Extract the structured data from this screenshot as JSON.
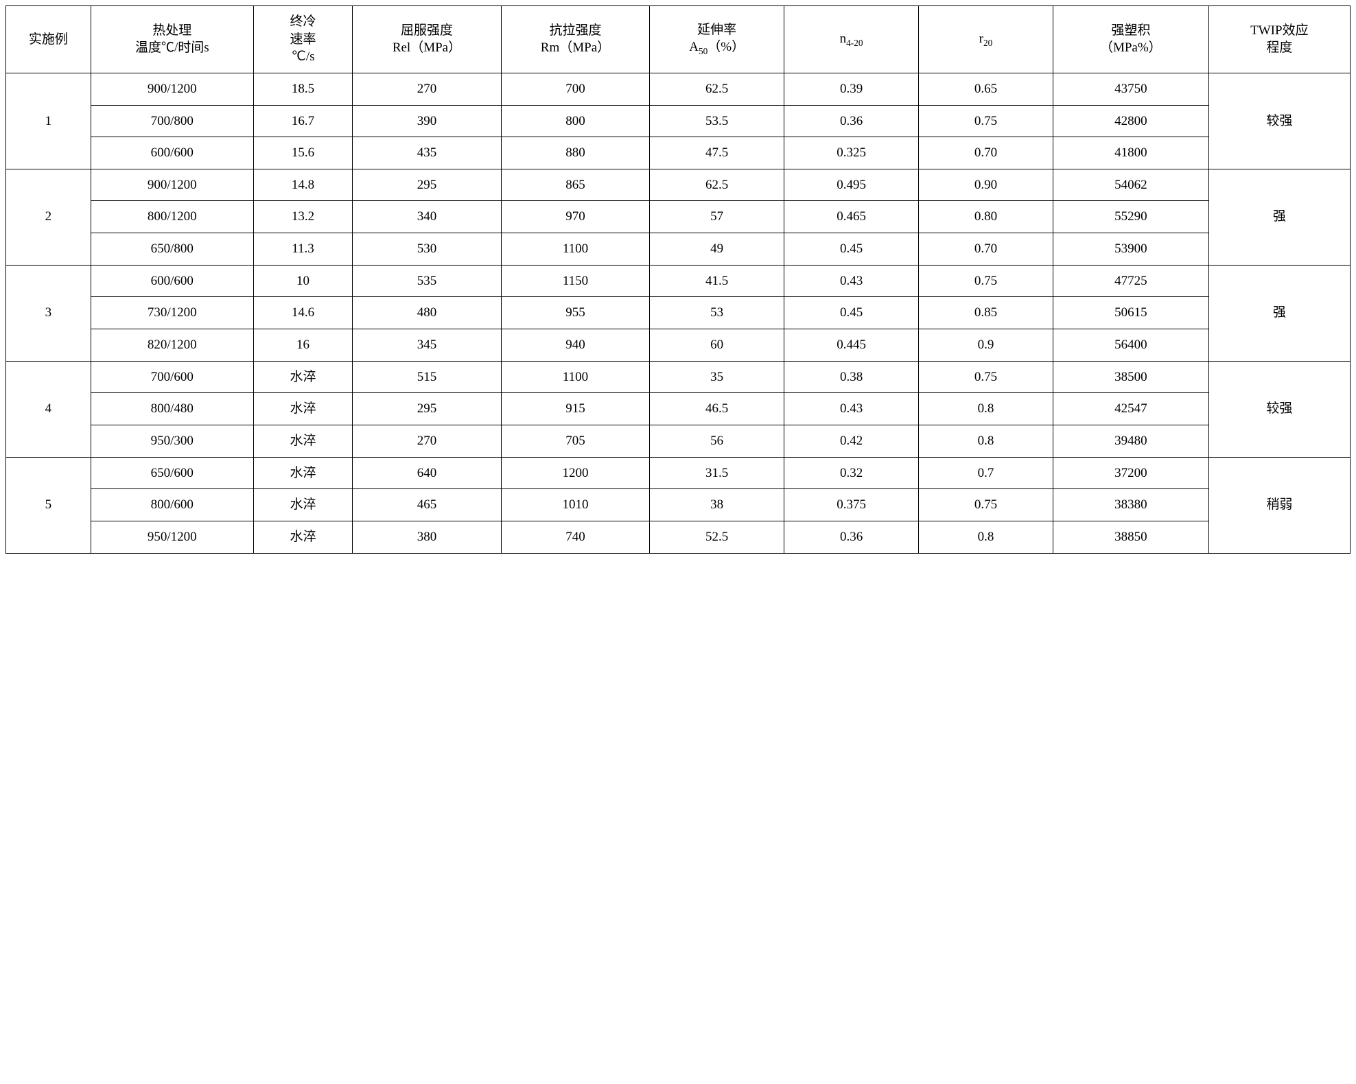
{
  "table": {
    "columns": [
      {
        "key": "example",
        "label_lines": [
          "实施例"
        ],
        "width_pct": 6.0
      },
      {
        "key": "heat",
        "label_lines": [
          "热处理",
          "温度℃/时间s"
        ],
        "width_pct": 11.5
      },
      {
        "key": "cool",
        "label_lines": [
          "终冷",
          "速率",
          "℃/s"
        ],
        "width_pct": 7.0
      },
      {
        "key": "rel",
        "label_lines": [
          "屈服强度",
          "Rel（MPa）"
        ],
        "width_pct": 10.5
      },
      {
        "key": "rm",
        "label_lines": [
          "抗拉强度",
          "Rm（MPa）"
        ],
        "width_pct": 10.5
      },
      {
        "key": "a50",
        "label_html": "延伸率<br>A<span class=\"sub\">50</span>（%）",
        "width_pct": 9.5
      },
      {
        "key": "n420",
        "label_html": "n<span class=\"sub\">4-20</span>",
        "width_pct": 9.5
      },
      {
        "key": "r20",
        "label_html": "r<span class=\"sub\">20</span>",
        "width_pct": 9.5
      },
      {
        "key": "qsj",
        "label_lines": [
          "强塑积",
          "（MPa%）"
        ],
        "width_pct": 11.0
      },
      {
        "key": "twip",
        "label_lines": [
          "TWIP效应",
          "程度"
        ],
        "width_pct": 10.0
      }
    ],
    "groups": [
      {
        "example": "1",
        "twip": "较强",
        "rows": [
          {
            "heat": "900/1200",
            "cool": "18.5",
            "rel": "270",
            "rm": "700",
            "a50": "62.5",
            "n420": "0.39",
            "r20": "0.65",
            "qsj": "43750"
          },
          {
            "heat": "700/800",
            "cool": "16.7",
            "rel": "390",
            "rm": "800",
            "a50": "53.5",
            "n420": "0.36",
            "r20": "0.75",
            "qsj": "42800"
          },
          {
            "heat": "600/600",
            "cool": "15.6",
            "rel": "435",
            "rm": "880",
            "a50": "47.5",
            "n420": "0.325",
            "r20": "0.70",
            "qsj": "41800"
          }
        ]
      },
      {
        "example": "2",
        "twip": "强",
        "rows": [
          {
            "heat": "900/1200",
            "cool": "14.8",
            "rel": "295",
            "rm": "865",
            "a50": "62.5",
            "n420": "0.495",
            "r20": "0.90",
            "qsj": "54062"
          },
          {
            "heat": "800/1200",
            "cool": "13.2",
            "rel": "340",
            "rm": "970",
            "a50": "57",
            "n420": "0.465",
            "r20": "0.80",
            "qsj": "55290"
          },
          {
            "heat": "650/800",
            "cool": "11.3",
            "rel": "530",
            "rm": "1100",
            "a50": "49",
            "n420": "0.45",
            "r20": "0.70",
            "qsj": "53900"
          }
        ]
      },
      {
        "example": "3",
        "twip": "强",
        "rows": [
          {
            "heat": "600/600",
            "cool": "10",
            "rel": "535",
            "rm": "1150",
            "a50": "41.5",
            "n420": "0.43",
            "r20": "0.75",
            "qsj": "47725"
          },
          {
            "heat": "730/1200",
            "cool": "14.6",
            "rel": "480",
            "rm": "955",
            "a50": "53",
            "n420": "0.45",
            "r20": "0.85",
            "qsj": "50615"
          },
          {
            "heat": "820/1200",
            "cool": "16",
            "rel": "345",
            "rm": "940",
            "a50": "60",
            "n420": "0.445",
            "r20": "0.9",
            "qsj": "56400"
          }
        ]
      },
      {
        "example": "4",
        "twip": "较强",
        "rows": [
          {
            "heat": "700/600",
            "cool": "水淬",
            "rel": "515",
            "rm": "1100",
            "a50": "35",
            "n420": "0.38",
            "r20": "0.75",
            "qsj": "38500"
          },
          {
            "heat": "800/480",
            "cool": "水淬",
            "rel": "295",
            "rm": "915",
            "a50": "46.5",
            "n420": "0.43",
            "r20": "0.8",
            "qsj": "42547"
          },
          {
            "heat": "950/300",
            "cool": "水淬",
            "rel": "270",
            "rm": "705",
            "a50": "56",
            "n420": "0.42",
            "r20": "0.8",
            "qsj": "39480"
          }
        ]
      },
      {
        "example": "5",
        "twip": "稍弱",
        "rows": [
          {
            "heat": "650/600",
            "cool": "水淬",
            "rel": "640",
            "rm": "1200",
            "a50": "31.5",
            "n420": "0.32",
            "r20": "0.7",
            "qsj": "37200"
          },
          {
            "heat": "800/600",
            "cool": "水淬",
            "rel": "465",
            "rm": "1010",
            "a50": "38",
            "n420": "0.375",
            "r20": "0.75",
            "qsj": "38380"
          },
          {
            "heat": "950/1200",
            "cool": "水淬",
            "rel": "380",
            "rm": "740",
            "a50": "52.5",
            "n420": "0.36",
            "r20": "0.8",
            "qsj": "38850"
          }
        ]
      }
    ]
  }
}
